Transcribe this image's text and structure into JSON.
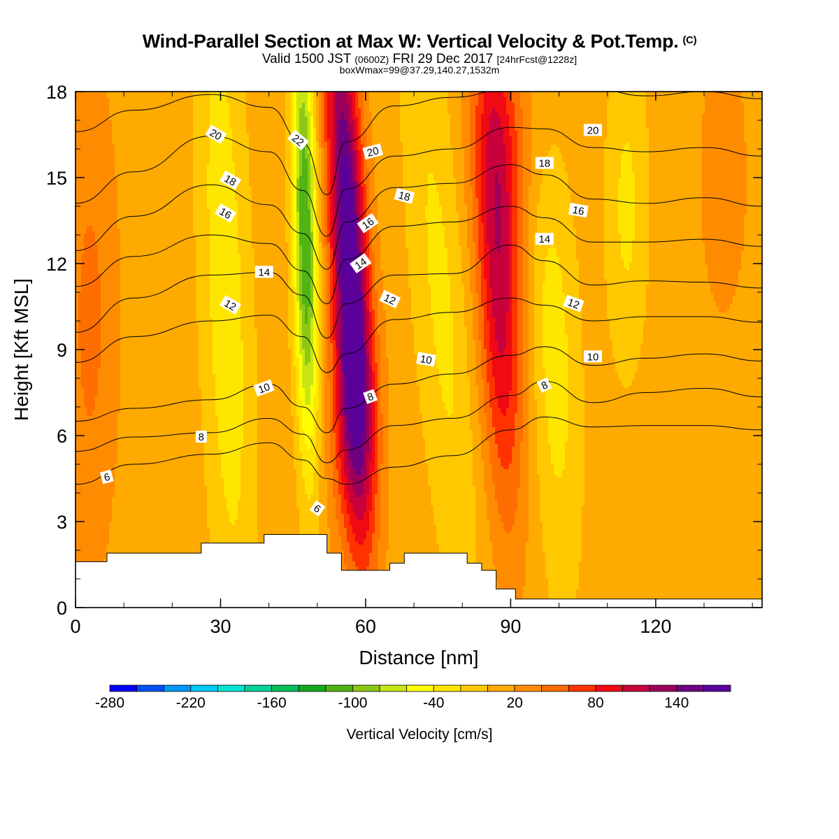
{
  "header": {
    "title": "Wind-Parallel Section at Max W: Vertical Velocity & Pot.Temp.",
    "title_mark": "(C)",
    "valid_prefix": "Valid 1500 JST",
    "valid_utc": "(0600Z)",
    "valid_date": "FRI 29 Dec 2017",
    "forecast_info": "[24hrFcst@1228z]",
    "box_info": "boxWmax=99@37.29,140.27,1532m"
  },
  "chart_data": {
    "type": "heatmap",
    "xlabel": "Distance [nm]",
    "ylabel": "Height [Kft MSL]",
    "xlim": [
      0,
      142
    ],
    "ylim": [
      0,
      18
    ],
    "xticks": [
      0,
      30,
      60,
      90,
      120
    ],
    "yticks": [
      0,
      3,
      6,
      9,
      12,
      15,
      18
    ],
    "grid": false,
    "colorbar": {
      "label": "Vertical Velocity [cm/s]",
      "labels": [
        "-280",
        "-220",
        "-160",
        "-100",
        "-40",
        "20",
        "80",
        "140"
      ],
      "label_values": [
        -280,
        -220,
        -160,
        -100,
        -40,
        20,
        80,
        140
      ],
      "min": -280,
      "max": 180,
      "step": 20,
      "colors": [
        "#0000ff",
        "#0050f5",
        "#0096f5",
        "#00c8f5",
        "#00e6d2",
        "#00d296",
        "#00be5a",
        "#14aa1e",
        "#50b414",
        "#8cc814",
        "#c8e614",
        "#ffff00",
        "#ffe600",
        "#ffc800",
        "#ffaa00",
        "#ff8c00",
        "#ff6e00",
        "#ff3200",
        "#f00a14",
        "#c8003c",
        "#9b005a",
        "#6e0082",
        "#5a009b"
      ]
    },
    "terrain_kft": [
      {
        "x0": 0,
        "x1": 6.5,
        "h": 1.6
      },
      {
        "x0": 6.5,
        "x1": 26,
        "h": 1.9
      },
      {
        "x0": 26,
        "x1": 39,
        "h": 2.25
      },
      {
        "x0": 39,
        "x1": 52,
        "h": 2.55
      },
      {
        "x0": 52,
        "x1": 55,
        "h": 1.9
      },
      {
        "x0": 55,
        "x1": 65,
        "h": 1.3
      },
      {
        "x0": 65,
        "x1": 68,
        "h": 1.55
      },
      {
        "x0": 68,
        "x1": 81,
        "h": 1.9
      },
      {
        "x0": 81,
        "x1": 84,
        "h": 1.55
      },
      {
        "x0": 84,
        "x1": 87,
        "h": 1.3
      },
      {
        "x0": 87,
        "x1": 91,
        "h": 0.65
      },
      {
        "x0": 91,
        "x1": 142,
        "h": 0.3
      }
    ],
    "velocity_features": [
      {
        "x": 56.5,
        "y": 12.5,
        "sx": 2.6,
        "sy": 6.5,
        "tilt": -0.28,
        "value": 170
      },
      {
        "x": 57.5,
        "y": 6.5,
        "sx": 3.5,
        "sy": 3.2,
        "tilt": 0,
        "value": 60
      },
      {
        "x": 87.5,
        "y": 12.0,
        "sx": 3.2,
        "sy": 6.0,
        "tilt": -0.2,
        "value": 105
      },
      {
        "x": 47.5,
        "y": 13.0,
        "sx": 1.7,
        "sy": 5.5,
        "tilt": -0.1,
        "value": -130
      },
      {
        "x": 31,
        "y": 11,
        "sx": 3.5,
        "sy": 9.0,
        "tilt": -0.2,
        "value": -45
      },
      {
        "x": 75.5,
        "y": 11,
        "sx": 4.0,
        "sy": 8.0,
        "tilt": -0.45,
        "value": -35
      },
      {
        "x": 99,
        "y": 9,
        "sx": 3.5,
        "sy": 6.0,
        "tilt": -0.2,
        "value": -40
      },
      {
        "x": 114,
        "y": 14,
        "sx": 3.0,
        "sy": 4.0,
        "tilt": 0,
        "value": -35
      },
      {
        "x": 3,
        "y": 10,
        "sx": 4.0,
        "sy": 6.0,
        "tilt": 0,
        "value": 35
      },
      {
        "x": 90,
        "y": 16.5,
        "sx": 6.0,
        "sy": 2.5,
        "tilt": 0,
        "value": 25
      },
      {
        "x": 134,
        "y": 15,
        "sx": 4.0,
        "sy": 4.0,
        "tilt": 0,
        "value": 20
      }
    ],
    "theta_contours": [
      {
        "label": "6",
        "label_x": 6.5,
        "label_y": 4.55,
        "label_angle": -15,
        "points": [
          [
            0,
            4.3
          ],
          [
            12,
            5.0
          ],
          [
            28,
            5.35
          ],
          [
            40,
            5.75
          ],
          [
            47,
            5.15
          ],
          [
            52,
            4.5
          ],
          [
            56,
            4.3
          ],
          [
            66,
            4.9
          ],
          [
            78,
            5.3
          ],
          [
            90,
            6.2
          ],
          [
            97,
            6.65
          ],
          [
            107,
            6.3
          ],
          [
            118,
            6.35
          ],
          [
            130,
            6.35
          ],
          [
            142,
            6.2
          ]
        ]
      },
      {
        "label": "8",
        "label_x": 26,
        "label_y": 5.95,
        "label_angle": 0,
        "points": [
          [
            0,
            5.45
          ],
          [
            12,
            5.95
          ],
          [
            28,
            6.1
          ],
          [
            40,
            6.6
          ],
          [
            47,
            6.05
          ],
          [
            52,
            5.05
          ],
          [
            56,
            5.5
          ],
          [
            66,
            6.35
          ],
          [
            78,
            6.6
          ],
          [
            90,
            7.4
          ],
          [
            97,
            7.9
          ],
          [
            107,
            7.15
          ],
          [
            118,
            7.5
          ],
          [
            130,
            7.65
          ],
          [
            142,
            7.35
          ]
        ]
      },
      {
        "label": "10",
        "label_x": 39,
        "label_y": 7.65,
        "label_angle": -20,
        "points": [
          [
            0,
            6.5
          ],
          [
            12,
            6.95
          ],
          [
            28,
            7.25
          ],
          [
            40,
            7.8
          ],
          [
            47,
            7.0
          ],
          [
            52,
            6.1
          ],
          [
            56,
            6.95
          ],
          [
            66,
            7.8
          ],
          [
            78,
            8.15
          ],
          [
            90,
            8.8
          ],
          [
            97,
            9.1
          ],
          [
            107,
            8.45
          ],
          [
            118,
            8.7
          ],
          [
            130,
            8.85
          ],
          [
            142,
            8.6
          ]
        ]
      },
      {
        "label": "12",
        "label_x": 32,
        "label_y": 10.55,
        "label_angle": 30,
        "points": [
          [
            0,
            8.55
          ],
          [
            12,
            9.45
          ],
          [
            28,
            10.0
          ],
          [
            40,
            10.2
          ],
          [
            47,
            9.45
          ],
          [
            52,
            8.2
          ],
          [
            56,
            8.85
          ],
          [
            66,
            10.05
          ],
          [
            78,
            10.3
          ],
          [
            90,
            10.8
          ],
          [
            97,
            10.55
          ],
          [
            107,
            10.0
          ],
          [
            118,
            10.15
          ],
          [
            130,
            10.15
          ],
          [
            142,
            9.95
          ]
        ]
      },
      {
        "label": "14",
        "label_x": 39,
        "label_y": 11.7,
        "label_angle": 0,
        "points": [
          [
            0,
            9.6
          ],
          [
            12,
            10.8
          ],
          [
            28,
            11.6
          ],
          [
            40,
            11.7
          ],
          [
            47,
            10.9
          ],
          [
            52,
            9.4
          ],
          [
            56,
            10.6
          ],
          [
            66,
            11.6
          ],
          [
            78,
            11.65
          ],
          [
            90,
            12.65
          ],
          [
            97,
            12.1
          ],
          [
            107,
            11.25
          ],
          [
            118,
            11.4
          ],
          [
            130,
            11.35
          ],
          [
            142,
            11.15
          ]
        ]
      },
      {
        "label": "16",
        "label_x": 31,
        "label_y": 13.75,
        "label_angle": 30,
        "points": [
          [
            0,
            11.2
          ],
          [
            12,
            12.25
          ],
          [
            28,
            13.0
          ],
          [
            40,
            12.7
          ],
          [
            47,
            11.75
          ],
          [
            52,
            10.6
          ],
          [
            56,
            12.15
          ],
          [
            66,
            13.3
          ],
          [
            78,
            13.45
          ],
          [
            90,
            14.0
          ],
          [
            97,
            13.6
          ],
          [
            107,
            12.75
          ],
          [
            118,
            12.75
          ],
          [
            130,
            12.85
          ],
          [
            142,
            12.6
          ]
        ]
      },
      {
        "label": "18",
        "label_x": 32,
        "label_y": 14.9,
        "label_angle": 30,
        "points": [
          [
            0,
            12.45
          ],
          [
            12,
            13.65
          ],
          [
            28,
            14.75
          ],
          [
            40,
            14.05
          ],
          [
            47,
            13.05
          ],
          [
            52,
            11.8
          ],
          [
            56,
            13.45
          ],
          [
            66,
            14.65
          ],
          [
            78,
            14.8
          ],
          [
            90,
            15.45
          ],
          [
            97,
            15.1
          ],
          [
            107,
            14.25
          ],
          [
            118,
            14.1
          ],
          [
            130,
            14.3
          ],
          [
            142,
            14.0
          ]
        ]
      },
      {
        "label": "20",
        "label_x": 29,
        "label_y": 16.5,
        "label_angle": 30,
        "points": [
          [
            0,
            14.1
          ],
          [
            12,
            15.2
          ],
          [
            28,
            16.45
          ],
          [
            40,
            15.9
          ],
          [
            47,
            14.55
          ],
          [
            52,
            12.95
          ],
          [
            56,
            14.6
          ],
          [
            66,
            15.75
          ],
          [
            78,
            16.0
          ],
          [
            90,
            16.75
          ],
          [
            97,
            16.7
          ],
          [
            107,
            16.05
          ],
          [
            118,
            15.9
          ],
          [
            130,
            16.05
          ],
          [
            142,
            15.75
          ]
        ]
      },
      {
        "label": "22",
        "label_x": 46,
        "label_y": 16.3,
        "label_angle": 40,
        "points": [
          [
            0,
            16.6
          ],
          [
            12,
            17.35
          ],
          [
            28,
            17.9
          ],
          [
            40,
            17.45
          ],
          [
            47,
            16.2
          ],
          [
            52,
            14.4
          ],
          [
            56,
            16.25
          ],
          [
            66,
            17.5
          ],
          [
            78,
            17.8
          ],
          [
            90,
            18.1
          ],
          [
            97,
            18.2
          ],
          [
            107,
            18.1
          ],
          [
            118,
            17.85
          ],
          [
            130,
            18.0
          ],
          [
            142,
            17.75
          ]
        ]
      }
    ],
    "extra_labels": [
      {
        "label": "20",
        "x": 61.5,
        "y": 15.9,
        "angle": -15
      },
      {
        "label": "18",
        "x": 68,
        "y": 14.35,
        "angle": 15
      },
      {
        "label": "16",
        "x": 60.5,
        "y": 13.4,
        "angle": -35
      },
      {
        "label": "14",
        "x": 59,
        "y": 12.0,
        "angle": -35
      },
      {
        "label": "12",
        "x": 65,
        "y": 10.75,
        "angle": 25
      },
      {
        "label": "10",
        "x": 72.5,
        "y": 8.65,
        "angle": 10
      },
      {
        "label": "8",
        "x": 61,
        "y": 7.35,
        "angle": -20
      },
      {
        "label": "6",
        "x": 50,
        "y": 3.45,
        "angle": 35
      },
      {
        "label": "20",
        "x": 107,
        "y": 16.65,
        "angle": 0
      },
      {
        "label": "18",
        "x": 97,
        "y": 15.5,
        "angle": 0
      },
      {
        "label": "16",
        "x": 104,
        "y": 13.85,
        "angle": 10
      },
      {
        "label": "14",
        "x": 97,
        "y": 12.85,
        "angle": 0
      },
      {
        "label": "12",
        "x": 103,
        "y": 10.6,
        "angle": 20
      },
      {
        "label": "10",
        "x": 107,
        "y": 8.75,
        "angle": 0
      },
      {
        "label": "8",
        "x": 97,
        "y": 7.75,
        "angle": -25
      }
    ]
  }
}
